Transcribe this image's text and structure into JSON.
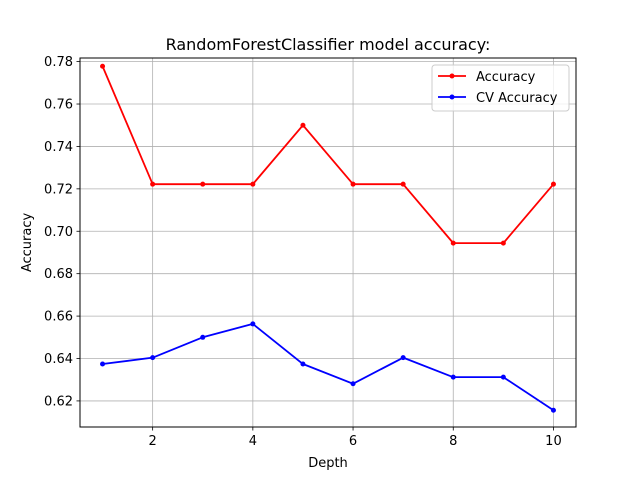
{
  "chart_data": {
    "type": "line",
    "title": "RandomForestClassifier model accuracy:",
    "xlabel": "Depth",
    "ylabel": "Accuracy",
    "x": [
      1,
      2,
      3,
      4,
      5,
      6,
      7,
      8,
      9,
      10
    ],
    "xlim": [
      0.55,
      10.45
    ],
    "ylim": [
      0.6077,
      0.7817
    ],
    "xticks": [
      2,
      4,
      6,
      8,
      10
    ],
    "xtick_labels": [
      "2",
      "4",
      "6",
      "8",
      "10"
    ],
    "yticks": [
      0.62,
      0.64,
      0.66,
      0.68,
      0.7,
      0.72,
      0.74,
      0.76,
      0.78
    ],
    "ytick_labels": [
      "0.62",
      "0.64",
      "0.66",
      "0.68",
      "0.70",
      "0.72",
      "0.74",
      "0.76",
      "0.78"
    ],
    "grid": true,
    "legend_position": "top-right",
    "series": [
      {
        "name": "Accuracy",
        "color": "#ff0000",
        "marker": "dot",
        "values": [
          0.7778,
          0.7222,
          0.7222,
          0.7222,
          0.75,
          0.7222,
          0.7222,
          0.6944,
          0.6944,
          0.7222
        ]
      },
      {
        "name": "CV Accuracy",
        "color": "#0000ff",
        "marker": "dot",
        "values": [
          0.6374,
          0.6404,
          0.65,
          0.6563,
          0.6374,
          0.6281,
          0.6404,
          0.6312,
          0.6312,
          0.6156
        ]
      }
    ]
  }
}
